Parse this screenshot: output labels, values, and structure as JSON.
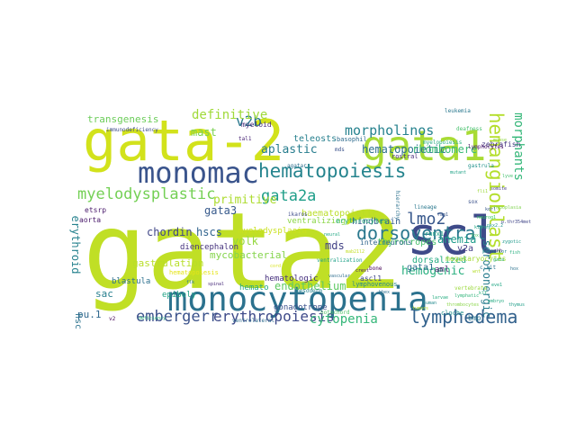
{
  "words": [
    {
      "text": "gata2",
      "color": "#c0df25",
      "rot": 0
    },
    {
      "text": "gata-2",
      "color": "#d2e21b",
      "rot": 0
    },
    {
      "text": "monocytopenia",
      "color": "#2c728e",
      "rot": 0
    },
    {
      "text": "scl",
      "color": "#3e4a89",
      "rot": 0
    },
    {
      "text": "gata1",
      "color": "#a8db34",
      "rot": 0
    },
    {
      "text": "monomac",
      "color": "#3a548c",
      "rot": 0
    },
    {
      "text": "hematopoiesis",
      "color": "#25848e",
      "rot": 0
    },
    {
      "text": "myelodysplastic",
      "color": "#74d055",
      "rot": 0
    },
    {
      "text": "dorsoventral",
      "color": "#2a788e",
      "rot": 0
    },
    {
      "text": "lymphedema",
      "color": "#33628d",
      "rot": 0
    },
    {
      "text": "hemangioblast",
      "color": "#b4de2c",
      "rot": 90
    },
    {
      "text": "gata2a",
      "color": "#1f9e89",
      "rot": 0
    },
    {
      "text": "v2b",
      "color": "#2a788e",
      "rot": 0
    },
    {
      "text": "embergerr",
      "color": "#3b528b",
      "rot": 0
    },
    {
      "text": "erythropoiesis",
      "color": "#3e4a89",
      "rot": 0
    },
    {
      "text": "lmo2",
      "color": "#38588c",
      "rot": 0
    },
    {
      "text": "morpholinos",
      "color": "#26828e",
      "rot": 0
    },
    {
      "text": "definitive",
      "color": "#a0da39",
      "rot": 0
    },
    {
      "text": "cytopenia",
      "color": "#35b779",
      "rot": 0
    },
    {
      "text": "hemogenic",
      "color": "#29af7f",
      "rot": 0
    },
    {
      "text": "serotonergic",
      "color": "#287d8e",
      "rot": 90
    },
    {
      "text": "morphants",
      "color": "#35b779",
      "rot": 90
    },
    {
      "text": "transgenesis",
      "color": "#6ccd5a",
      "rot": 0
    },
    {
      "text": "primitive",
      "color": "#addc30",
      "rot": 0
    },
    {
      "text": "aplastic",
      "color": "#287d8e",
      "rot": 0
    },
    {
      "text": "mast",
      "color": "#7ad151",
      "rot": 0
    },
    {
      "text": "hematopoietic",
      "color": "#2d708e",
      "rot": 0
    },
    {
      "text": "rhombomere",
      "color": "#3aba76",
      "rot": 0
    },
    {
      "text": "gata3",
      "color": "#375a8c",
      "rot": 0
    },
    {
      "text": "hscs",
      "color": "#32648e",
      "rot": 0
    },
    {
      "text": "chordin",
      "color": "#404688",
      "rot": 0
    },
    {
      "text": "haematopoietic",
      "color": "#bade28",
      "rot": 0
    },
    {
      "text": "erythroid",
      "color": "#26828e",
      "rot": 90
    },
    {
      "text": "yolk",
      "color": "#95d840",
      "rot": 0
    },
    {
      "text": "mycobacterial",
      "color": "#84d44b",
      "rot": 0
    },
    {
      "text": "myelodysplasia",
      "color": "#cae11f",
      "rot": 0
    },
    {
      "text": "ventralizing",
      "color": "#8bd646",
      "rot": 0
    },
    {
      "text": "hindbrain",
      "color": "#355f8d",
      "rot": 0
    },
    {
      "text": "gastrulation",
      "color": "#b8de29",
      "rot": 0
    },
    {
      "text": "endothelium",
      "color": "#5ec962",
      "rot": 0
    },
    {
      "text": "hemato",
      "color": "#22a884",
      "rot": 0
    },
    {
      "text": "mds",
      "color": "#424186",
      "rot": 0
    },
    {
      "text": "anemia",
      "color": "#1e9b8a",
      "rot": 0
    },
    {
      "text": "dorsalized",
      "color": "#25ab82",
      "rot": 0
    },
    {
      "text": "thyrotropes",
      "color": "#4ac16d",
      "rot": 0
    },
    {
      "text": "v2a",
      "color": "#433e85",
      "rot": 0
    },
    {
      "text": "erythrocytes",
      "color": "#32b67a",
      "rot": 0
    },
    {
      "text": "gata1",
      "color": "#2e6e8e",
      "rot": 0
    },
    {
      "text": "teleosts",
      "color": "#27808e",
      "rot": 0
    },
    {
      "text": "pu.1",
      "color": "#31688e",
      "rot": 0
    },
    {
      "text": "hsc",
      "color": "#2c738e",
      "rot": 90
    },
    {
      "text": "sac",
      "color": "#277f8e",
      "rot": 0
    },
    {
      "text": "blastula",
      "color": "#2d708e",
      "rot": 0
    },
    {
      "text": "epiboly",
      "color": "#20a386",
      "rot": 0
    },
    {
      "text": "diencephalon",
      "color": "#46337e",
      "rot": 0
    },
    {
      "text": "gonadotrope",
      "color": "#3b518b",
      "rot": 0
    },
    {
      "text": "hematologic",
      "color": "#46307e",
      "rot": 0
    },
    {
      "text": "aml",
      "color": "#481a6c",
      "rot": 0
    },
    {
      "text": "bmp",
      "color": "#2a768e",
      "rot": 0
    },
    {
      "text": "megakaryocytes",
      "color": "#a5db36",
      "rot": 0
    },
    {
      "text": "interneurons",
      "color": "#31668e",
      "rot": 0
    },
    {
      "text": "ascl1",
      "color": "#3f4889",
      "rot": 0
    },
    {
      "text": "myeloid",
      "color": "#472c7a",
      "rot": 0
    },
    {
      "text": "aorta",
      "color": "#48186a",
      "rot": 0
    },
    {
      "text": "zebrafish",
      "color": "#453781",
      "rot": 0
    },
    {
      "text": "agatar",
      "color": "#2e6f8e",
      "rot": 0
    },
    {
      "text": "basophil",
      "color": "#2f6c8e",
      "rot": 0
    },
    {
      "text": "rostral",
      "color": "#472c7a",
      "rot": 0
    },
    {
      "text": "runx1",
      "color": "#20a386",
      "rot": 0
    },
    {
      "text": "lymphovenous",
      "color": "#24878e",
      "rot": 0
    },
    {
      "text": "cloche",
      "color": "#21908d",
      "rot": 0
    },
    {
      "text": "ventrolateral",
      "color": "#2f6c8e",
      "rot": 0
    },
    {
      "text": "immunodeficiency",
      "color": "#3d4e8a",
      "rot": 0
    },
    {
      "text": "tal1",
      "color": "#482475",
      "rot": 0
    },
    {
      "text": "etsrp",
      "color": "#48186a",
      "rot": 0
    },
    {
      "text": "hierarchy",
      "color": "#2c718e",
      "rot": 90
    },
    {
      "text": "ventralization",
      "color": "#1fa188",
      "rot": 0
    },
    {
      "text": "mesoderm",
      "color": "#26828e",
      "rot": 0
    },
    {
      "text": "bone",
      "color": "#440154",
      "rot": 0
    },
    {
      "text": "lineage",
      "color": "#2a788e",
      "rot": 0
    },
    {
      "text": "notochord",
      "color": "#52c569",
      "rot": 0
    },
    {
      "text": "v2",
      "color": "#440256",
      "rot": 0
    },
    {
      "text": "deficiency",
      "color": "#2db27d",
      "rot": 0
    },
    {
      "text": "myelopoiesis",
      "color": "#27ad81",
      "rot": 0
    },
    {
      "text": "lymphocytes",
      "color": "#471063",
      "rot": 0
    },
    {
      "text": "deafness",
      "color": "#48c16e",
      "rot": 0
    },
    {
      "text": "vertebrate",
      "color": "#9bd93c",
      "rot": 0
    },
    {
      "text": "gastrula",
      "color": "#21918c",
      "rot": 0
    },
    {
      "text": "hematopoiesis",
      "color": "#e5e419",
      "rot": 0
    },
    {
      "text": "c-kit",
      "color": "#2a768e",
      "rot": 0
    },
    {
      "text": "tumors",
      "color": "#bddf26",
      "rot": 0
    },
    {
      "text": "mds",
      "color": "#3b528b",
      "rot": 0
    },
    {
      "text": "leukemia",
      "color": "#2a788e",
      "rot": 0
    },
    {
      "text": "p.thr354met",
      "color": "#404588",
      "rot": 0
    },
    {
      "text": "hypoplasia",
      "color": "#7fd34e",
      "rot": 0
    },
    {
      "text": "nkx2.2",
      "color": "#1f968b",
      "rot": 0
    },
    {
      "text": "neurog1",
      "color": "#30cd5a",
      "rot": 0
    },
    {
      "text": "gata",
      "color": "#2ab07f",
      "rot": 0
    },
    {
      "text": "fox",
      "color": "#52c569",
      "rot": 0
    },
    {
      "text": "kidney",
      "color": "#22a884",
      "rot": 0
    },
    {
      "text": "posterior",
      "color": "#25848e",
      "rot": 0
    },
    {
      "text": "fish",
      "color": "#29af7f",
      "rot": 0
    },
    {
      "text": "sox",
      "color": "#3b528b",
      "rot": 0
    },
    {
      "text": "zygotic",
      "color": "#1f9a8a",
      "rot": 0
    },
    {
      "text": "shh",
      "color": "#482677",
      "rot": 0
    },
    {
      "text": "hox",
      "color": "#2c728e",
      "rot": 0
    },
    {
      "text": "lyve",
      "color": "#46c06f",
      "rot": 0
    },
    {
      "text": "fli1",
      "color": "#9dd93b",
      "rot": 0
    },
    {
      "text": "kdrl",
      "color": "#38598c",
      "rot": 0
    },
    {
      "text": "wnt",
      "color": "#b5de2b",
      "rot": 0
    },
    {
      "text": "eve1",
      "color": "#22a785",
      "rot": 0
    },
    {
      "text": "flk",
      "color": "#287c8e",
      "rot": 0
    },
    {
      "text": "spinal",
      "color": "#472a7a",
      "rot": 0
    },
    {
      "text": "cord",
      "color": "#d8e219",
      "rot": 0
    },
    {
      "text": "vascular",
      "color": "#2e6e8e",
      "rot": 0
    },
    {
      "text": "neural",
      "color": "#22a884",
      "rot": 0
    },
    {
      "text": "crest",
      "color": "#471365",
      "rot": 0
    },
    {
      "text": "mab21l2",
      "color": "#c2df23",
      "rot": 0
    },
    {
      "text": "hhex",
      "color": "#2d718e",
      "rot": 0
    },
    {
      "text": "lymphatic",
      "color": "#31b57b",
      "rot": 0
    },
    {
      "text": "embryo",
      "color": "#25ab82",
      "rot": 0
    },
    {
      "text": "thymus",
      "color": "#1f9e89",
      "rot": 0
    },
    {
      "text": "thrombocytes",
      "color": "#89d548",
      "rot": 0
    },
    {
      "text": "larvae",
      "color": "#26ad81",
      "rot": 0
    },
    {
      "text": "human",
      "color": "#23898e",
      "rot": 0
    },
    {
      "text": "mouse",
      "color": "#8fd744",
      "rot": 0
    },
    {
      "text": "mutant",
      "color": "#1fa287",
      "rot": 0
    },
    {
      "text": "somite",
      "color": "#433d84",
      "rot": 0
    },
    {
      "text": "klf",
      "color": "#2db27d",
      "rot": 0
    },
    {
      "text": "rag1",
      "color": "#39568c",
      "rot": 0
    },
    {
      "text": "ikaros",
      "color": "#3e4c8a",
      "rot": 0
    }
  ]
}
